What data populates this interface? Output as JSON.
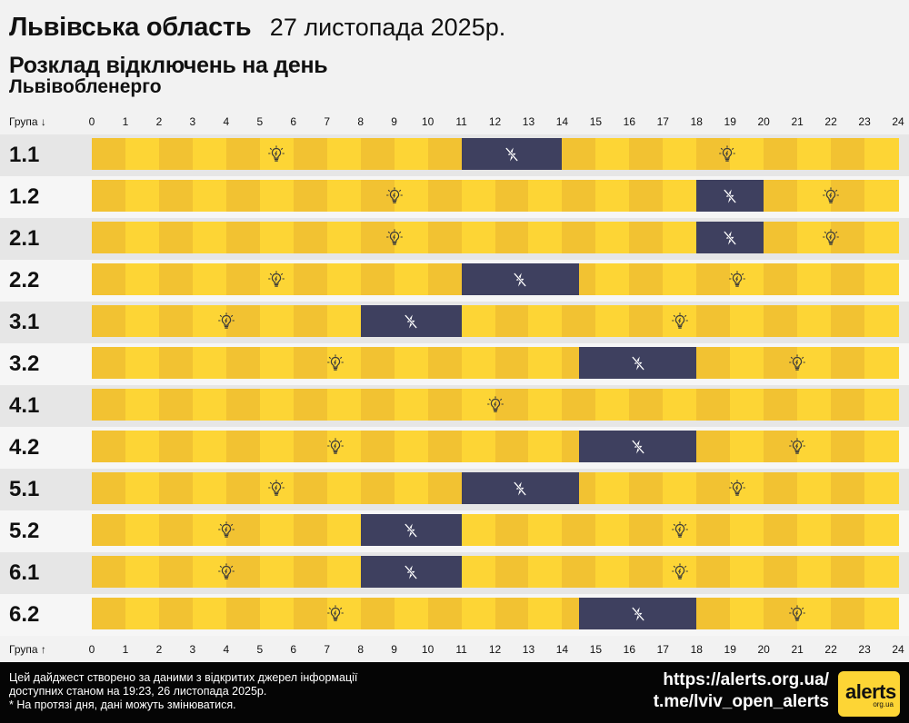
{
  "header": {
    "region": "Львівська область",
    "date": "27 листопада 2025р.",
    "subtitle": "Розклад відключень на день",
    "provider": "Львівобленерго"
  },
  "axis": {
    "top_label": "Група ↓",
    "bottom_label": "Група ↑",
    "hours": [
      "0",
      "1",
      "2",
      "3",
      "4",
      "5",
      "6",
      "7",
      "8",
      "9",
      "10",
      "11",
      "12",
      "13",
      "14",
      "15",
      "16",
      "17",
      "18",
      "19",
      "20",
      "21",
      "22",
      "23",
      "24"
    ]
  },
  "groups": [
    {
      "label": "1.1",
      "outages": [
        [
          11,
          14
        ]
      ],
      "power_icons": [
        5.5,
        18.9
      ]
    },
    {
      "label": "1.2",
      "outages": [
        [
          18,
          20
        ]
      ],
      "power_icons": [
        9,
        22
      ]
    },
    {
      "label": "2.1",
      "outages": [
        [
          18,
          20
        ]
      ],
      "power_icons": [
        9,
        22
      ]
    },
    {
      "label": "2.2",
      "outages": [
        [
          11,
          14.5
        ]
      ],
      "power_icons": [
        5.5,
        19.2
      ]
    },
    {
      "label": "3.1",
      "outages": [
        [
          8,
          11
        ]
      ],
      "power_icons": [
        4,
        17.5
      ]
    },
    {
      "label": "3.2",
      "outages": [
        [
          14.5,
          18
        ]
      ],
      "power_icons": [
        7.25,
        21
      ]
    },
    {
      "label": "4.1",
      "outages": [],
      "power_icons": [
        12
      ]
    },
    {
      "label": "4.2",
      "outages": [
        [
          14.5,
          18
        ]
      ],
      "power_icons": [
        7.25,
        21
      ]
    },
    {
      "label": "5.1",
      "outages": [
        [
          11,
          14.5
        ]
      ],
      "power_icons": [
        5.5,
        19.2
      ]
    },
    {
      "label": "5.2",
      "outages": [
        [
          8,
          11
        ]
      ],
      "power_icons": [
        4,
        17.5
      ]
    },
    {
      "label": "6.1",
      "outages": [
        [
          8,
          11
        ]
      ],
      "power_icons": [
        4,
        17.5
      ]
    },
    {
      "label": "6.2",
      "outages": [
        [
          14.5,
          18
        ]
      ],
      "power_icons": [
        7.25,
        21
      ]
    }
  ],
  "icons": {
    "power_on": "lightbulb-icon",
    "power_off": "no-power-icon"
  },
  "colors": {
    "on_even": "#f2c232",
    "on_odd": "#fdd535",
    "outage": "#3e405f"
  },
  "footer": {
    "note_line1": "Цей дайджест створено за даними з відкритих джерел інформації",
    "note_line2": "доступних станом на 19:23, 26 листопада 2025р.",
    "note_line3": "* На протязі дня, дані можуть змінюватися.",
    "url": "https://alerts.org.ua/",
    "telegram": "t.me/lviv_open_alerts",
    "logo_text": "alerts",
    "logo_sub": "org.ua"
  }
}
